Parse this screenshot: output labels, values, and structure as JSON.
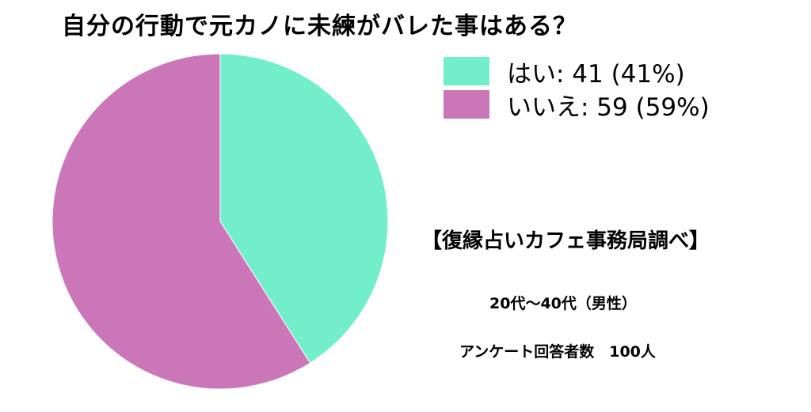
{
  "chart_data": {
    "type": "pie",
    "title": "自分の行動で元カノに未練がバレた事はある？",
    "slices": [
      {
        "label": "はい",
        "value": 41,
        "percent": "41%",
        "color": "#72efca"
      },
      {
        "label": "いいえ",
        "value": 59,
        "percent": "59%",
        "color": "#cb76b9"
      }
    ],
    "legend_placement": "top-right",
    "legend_labels": [
      "はい: 41 (41%)",
      "いいえ: 59 (59%)"
    ]
  },
  "notes": {
    "source": "【復縁占いカフェ事務局調べ】",
    "demographic": "20代〜40代（男性）",
    "respondents": "アンケート回答者数　100人"
  }
}
